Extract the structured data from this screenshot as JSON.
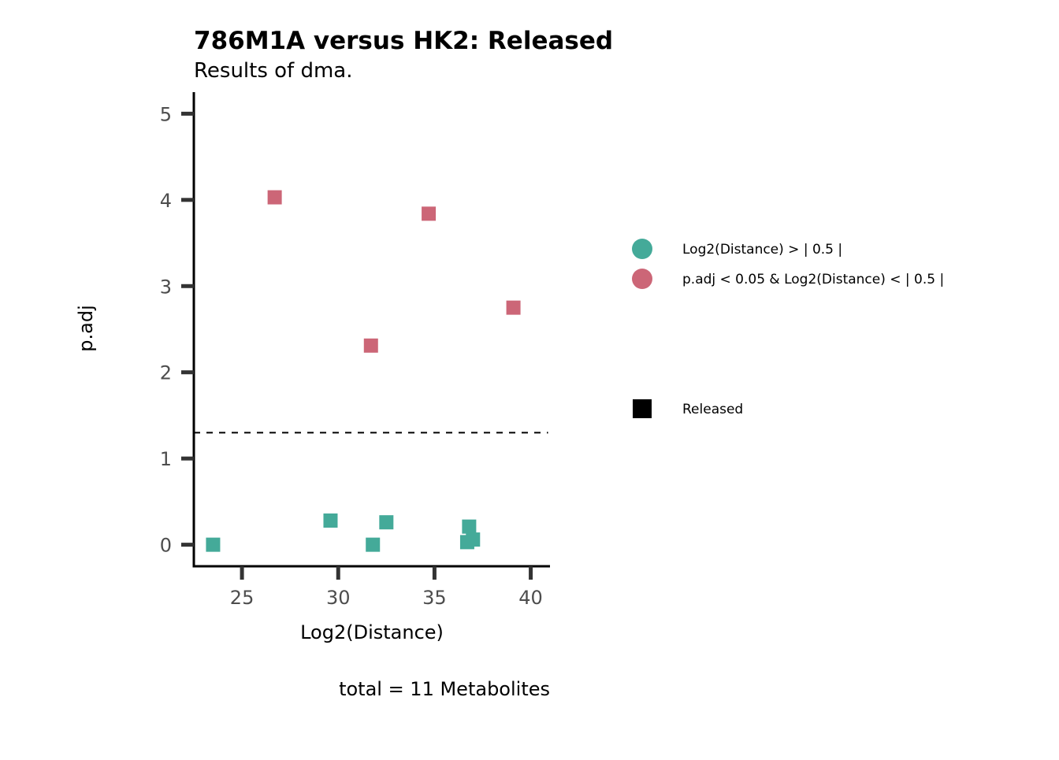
{
  "chart_data": {
    "type": "scatter",
    "title": "786M1A versus HK2: Released",
    "subtitle": "Results of dma.",
    "xlabel": "Log2(Distance)",
    "ylabel": "p.adj",
    "caption": "total = 11 Metabolites",
    "xlim": [
      22.5,
      41
    ],
    "ylim": [
      -0.25,
      5.25
    ],
    "x_ticks": [
      "25",
      "30",
      "35",
      "40"
    ],
    "y_ticks": [
      "0",
      "1",
      "2",
      "3",
      "4",
      "5"
    ],
    "threshold_line": 1.3,
    "grid": false,
    "legend_position": "right",
    "colors": {
      "not_significant": "#44AA99",
      "significant": "#CC6677",
      "shape_key": "#000000"
    },
    "legend": {
      "color_entries": [
        {
          "key": "not_significant",
          "label": "Log2(Distance)  > | 0.5 |"
        },
        {
          "key": "significant",
          "label": "p.adj  <  0.05  &  Log2(Distance)  < | 0.5 |"
        }
      ],
      "shape_entries": [
        {
          "label": "Released"
        }
      ]
    },
    "series": [
      {
        "group": "significant",
        "points": [
          {
            "x": 26.7,
            "y": 4.03
          },
          {
            "x": 34.7,
            "y": 3.84
          },
          {
            "x": 39.1,
            "y": 2.75
          },
          {
            "x": 31.7,
            "y": 2.31
          }
        ]
      },
      {
        "group": "not_significant",
        "points": [
          {
            "x": 23.5,
            "y": 0.0
          },
          {
            "x": 29.6,
            "y": 0.28
          },
          {
            "x": 31.8,
            "y": 0.0
          },
          {
            "x": 32.5,
            "y": 0.26
          },
          {
            "x": 36.8,
            "y": 0.21
          },
          {
            "x": 36.7,
            "y": 0.03
          },
          {
            "x": 37.0,
            "y": 0.06
          }
        ]
      }
    ]
  }
}
